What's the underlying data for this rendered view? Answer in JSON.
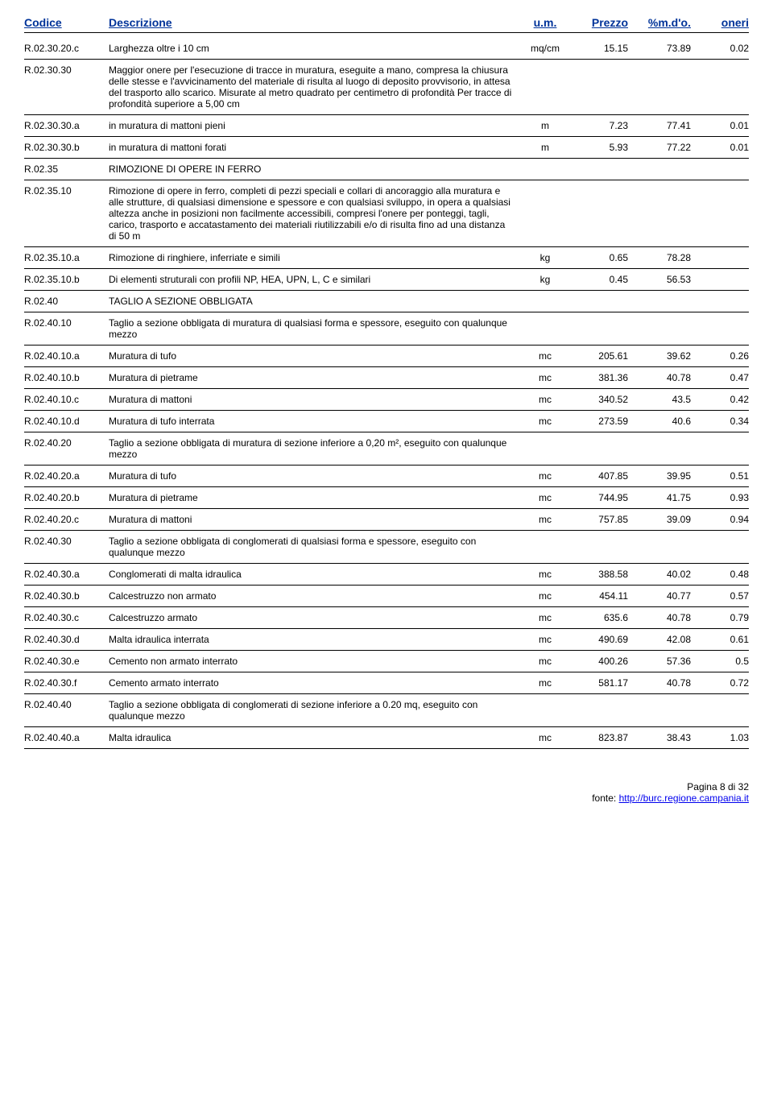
{
  "header": {
    "codice": "Codice",
    "descrizione": "Descrizione",
    "um": "u.m.",
    "prezzo": "Prezzo",
    "mdo": "%m.d'o.",
    "oneri": "oneri"
  },
  "rows": [
    {
      "codice": "R.02.30.20.c",
      "descrizione": "Larghezza oltre i 10  cm",
      "um": "mq/cm",
      "prezzo": "15.15",
      "mdo": "73.89",
      "oneri": "0.02"
    },
    {
      "codice": "R.02.30.30",
      "descrizione": "Maggior onere per l'esecuzione di tracce in muratura, eseguite a mano, compresa la chiusura delle stesse e l'avvicinamento del materiale di risulta al luogo di deposito provvisorio, in attesa del trasporto allo scarico. Misurate al metro quadrato per centimetro di profondità Per tracce di profondità superiore a 5,00 cm",
      "um": "",
      "prezzo": "",
      "mdo": "",
      "oneri": ""
    },
    {
      "codice": "R.02.30.30.a",
      "descrizione": "in muratura di mattoni pieni",
      "um": "m",
      "prezzo": "7.23",
      "mdo": "77.41",
      "oneri": "0.01"
    },
    {
      "codice": "R.02.30.30.b",
      "descrizione": "in muratura di mattoni forati",
      "um": "m",
      "prezzo": "5.93",
      "mdo": "77.22",
      "oneri": "0.01"
    },
    {
      "codice": "R.02.35",
      "descrizione": "RIMOZIONE DI OPERE IN FERRO",
      "um": "",
      "prezzo": "",
      "mdo": "",
      "oneri": ""
    },
    {
      "codice": "R.02.35.10",
      "descrizione": "Rimozione di opere in ferro, completi di pezzi speciali e collari di ancoraggio alla muratura e alle strutture, di qualsiasi dimensione e spessore e con qualsiasi sviluppo, in opera a qualsiasi altezza anche in posizioni non facilmente accessibili, compresi l'onere per ponteggi, tagli, carico,  trasporto e accatastamento dei materiali riutilizzabili e/o di risulta fino ad una distanza di 50 m",
      "um": "",
      "prezzo": "",
      "mdo": "",
      "oneri": ""
    },
    {
      "codice": "R.02.35.10.a",
      "descrizione": "Rimozione di ringhiere, inferriate e simili",
      "um": "kg",
      "prezzo": "0.65",
      "mdo": "78.28",
      "oneri": ""
    },
    {
      "codice": "R.02.35.10.b",
      "descrizione": "Di elementi struturali con profili NP, HEA, UPN, L, C e similari",
      "um": "kg",
      "prezzo": "0.45",
      "mdo": "56.53",
      "oneri": ""
    },
    {
      "codice": "R.02.40",
      "descrizione": "TAGLIO A SEZIONE OBBLIGATA",
      "um": "",
      "prezzo": "",
      "mdo": "",
      "oneri": ""
    },
    {
      "codice": "R.02.40.10",
      "descrizione": "Taglio a sezione obbligata di muratura di qualsiasi forma e spessore, eseguito con qualunque mezzo",
      "um": "",
      "prezzo": "",
      "mdo": "",
      "oneri": ""
    },
    {
      "codice": "R.02.40.10.a",
      "descrizione": "Muratura di tufo",
      "um": "mc",
      "prezzo": "205.61",
      "mdo": "39.62",
      "oneri": "0.26"
    },
    {
      "codice": "R.02.40.10.b",
      "descrizione": "Muratura di pietrame",
      "um": "mc",
      "prezzo": "381.36",
      "mdo": "40.78",
      "oneri": "0.47"
    },
    {
      "codice": "R.02.40.10.c",
      "descrizione": "Muratura di mattoni",
      "um": "mc",
      "prezzo": "340.52",
      "mdo": "43.5",
      "oneri": "0.42"
    },
    {
      "codice": "R.02.40.10.d",
      "descrizione": "Muratura di tufo interrata",
      "um": "mc",
      "prezzo": "273.59",
      "mdo": "40.6",
      "oneri": "0.34"
    },
    {
      "codice": "R.02.40.20",
      "descrizione": "Taglio a sezione obbligata di muratura di sezione inferiore a 0,20 m², eseguito con qualunque mezzo",
      "um": "",
      "prezzo": "",
      "mdo": "",
      "oneri": ""
    },
    {
      "codice": "R.02.40.20.a",
      "descrizione": "Muratura di tufo",
      "um": "mc",
      "prezzo": "407.85",
      "mdo": "39.95",
      "oneri": "0.51"
    },
    {
      "codice": "R.02.40.20.b",
      "descrizione": "Muratura di pietrame",
      "um": "mc",
      "prezzo": "744.95",
      "mdo": "41.75",
      "oneri": "0.93"
    },
    {
      "codice": "R.02.40.20.c",
      "descrizione": "Muratura di mattoni",
      "um": "mc",
      "prezzo": "757.85",
      "mdo": "39.09",
      "oneri": "0.94"
    },
    {
      "codice": "R.02.40.30",
      "descrizione": "Taglio a sezione obbligata di conglomerati di qualsiasi forma e spessore, eseguito con qualunque mezzo",
      "um": "",
      "prezzo": "",
      "mdo": "",
      "oneri": ""
    },
    {
      "codice": "R.02.40.30.a",
      "descrizione": "Conglomerati di malta idraulica",
      "um": "mc",
      "prezzo": "388.58",
      "mdo": "40.02",
      "oneri": "0.48"
    },
    {
      "codice": "R.02.40.30.b",
      "descrizione": "Calcestruzzo non armato",
      "um": "mc",
      "prezzo": "454.11",
      "mdo": "40.77",
      "oneri": "0.57"
    },
    {
      "codice": "R.02.40.30.c",
      "descrizione": "Calcestruzzo armato",
      "um": "mc",
      "prezzo": "635.6",
      "mdo": "40.78",
      "oneri": "0.79"
    },
    {
      "codice": "R.02.40.30.d",
      "descrizione": "Malta idraulica interrata",
      "um": "mc",
      "prezzo": "490.69",
      "mdo": "42.08",
      "oneri": "0.61"
    },
    {
      "codice": "R.02.40.30.e",
      "descrizione": "Cemento non armato interrato",
      "um": "mc",
      "prezzo": "400.26",
      "mdo": "57.36",
      "oneri": "0.5"
    },
    {
      "codice": "R.02.40.30.f",
      "descrizione": "Cemento armato interrato",
      "um": "mc",
      "prezzo": "581.17",
      "mdo": "40.78",
      "oneri": "0.72"
    },
    {
      "codice": "R.02.40.40",
      "descrizione": "Taglio a sezione obbligata di conglomerati di sezione inferiore a  0.20 mq, eseguito con qualunque mezzo",
      "um": "",
      "prezzo": "",
      "mdo": "",
      "oneri": ""
    },
    {
      "codice": "R.02.40.40.a",
      "descrizione": "Malta idraulica",
      "um": "mc",
      "prezzo": "823.87",
      "mdo": "38.43",
      "oneri": "1.03"
    }
  ],
  "footer": {
    "page": "Pagina 8 di 32",
    "source_label": "fonte: ",
    "source_url": "http://burc.regione.campania.it"
  }
}
